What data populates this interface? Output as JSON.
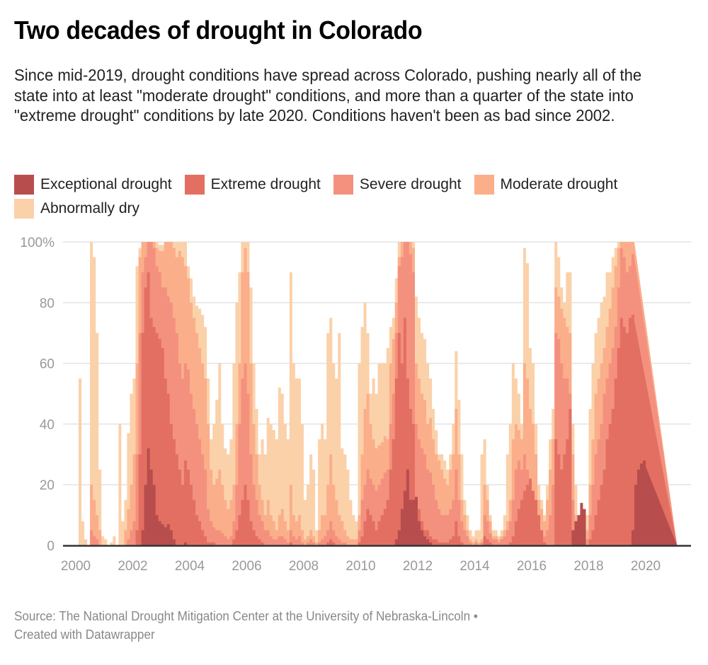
{
  "header": {
    "title": "Two decades of drought in Colorado",
    "subtitle": "Since mid-2019, drought conditions have spread across Colorado, pushing nearly all of the state into at least \"moderate drought\" conditions, and more than a quarter of the state into \"extreme drought\" conditions by late 2020. Conditions haven't been as bad since 2002."
  },
  "legend": [
    {
      "label": "Exceptional drought",
      "color": "#b84d4d"
    },
    {
      "label": "Extreme drought",
      "color": "#e36f62"
    },
    {
      "label": "Severe drought",
      "color": "#f3917e"
    },
    {
      "label": "Moderate drought",
      "color": "#fbae8a"
    },
    {
      "label": "Abnormally dry",
      "color": "#fbd1aa"
    }
  ],
  "footer": {
    "source": "Source: The National Drought Mitigation Center at the University of Nebraska-Lincoln •",
    "credit": "Created with Datawrapper"
  },
  "chart_data": {
    "type": "area",
    "stacking": "cumulative (each layer is the share of the state at that category or worse, drawn overlapping)",
    "title": "Two decades of drought in Colorado",
    "xlabel": "",
    "ylabel": "",
    "xlim": [
      1999.95,
      2021.15
    ],
    "ylim": [
      0,
      100
    ],
    "x_ticks": [
      "2000",
      "2002",
      "2004",
      "2006",
      "2008",
      "2010",
      "2012",
      "2014",
      "2016",
      "2018",
      "2020"
    ],
    "y_ticks": [
      "0",
      "20",
      "40",
      "60",
      "80",
      "100%"
    ],
    "grid": true,
    "legend_position": "top",
    "x": [
      2000.0,
      2000.1,
      2000.2,
      2000.3,
      2000.4,
      2000.5,
      2000.6,
      2000.7,
      2000.8,
      2000.9,
      2001.0,
      2001.1,
      2001.2,
      2001.3,
      2001.4,
      2001.5,
      2001.6,
      2001.7,
      2001.8,
      2001.9,
      2002.0,
      2002.1,
      2002.2,
      2002.3,
      2002.4,
      2002.5,
      2002.6,
      2002.7,
      2002.8,
      2002.9,
      2003.0,
      2003.1,
      2003.2,
      2003.3,
      2003.4,
      2003.5,
      2003.6,
      2003.7,
      2003.8,
      2003.9,
      2004.0,
      2004.1,
      2004.2,
      2004.3,
      2004.4,
      2004.5,
      2004.6,
      2004.7,
      2004.8,
      2004.9,
      2005.0,
      2005.1,
      2005.2,
      2005.3,
      2005.4,
      2005.5,
      2005.6,
      2005.7,
      2005.8,
      2005.9,
      2006.0,
      2006.1,
      2006.2,
      2006.3,
      2006.4,
      2006.5,
      2006.6,
      2006.7,
      2006.8,
      2006.9,
      2007.0,
      2007.1,
      2007.2,
      2007.3,
      2007.4,
      2007.5,
      2007.6,
      2007.7,
      2007.8,
      2007.9,
      2008.0,
      2008.1,
      2008.2,
      2008.3,
      2008.4,
      2008.5,
      2008.6,
      2008.7,
      2008.8,
      2008.9,
      2009.0,
      2009.1,
      2009.2,
      2009.3,
      2009.4,
      2009.5,
      2009.6,
      2009.7,
      2009.8,
      2009.9,
      2010.0,
      2010.1,
      2010.2,
      2010.3,
      2010.4,
      2010.5,
      2010.6,
      2010.7,
      2010.8,
      2010.9,
      2011.0,
      2011.1,
      2011.2,
      2011.3,
      2011.4,
      2011.5,
      2011.6,
      2011.7,
      2011.8,
      2011.9,
      2012.0,
      2012.1,
      2012.2,
      2012.3,
      2012.4,
      2012.5,
      2012.6,
      2012.7,
      2012.8,
      2012.9,
      2013.0,
      2013.1,
      2013.2,
      2013.3,
      2013.4,
      2013.5,
      2013.6,
      2013.7,
      2013.8,
      2013.9,
      2014.0,
      2014.1,
      2014.2,
      2014.3,
      2014.4,
      2014.5,
      2014.6,
      2014.7,
      2014.8,
      2014.9,
      2015.0,
      2015.1,
      2015.2,
      2015.3,
      2015.4,
      2015.5,
      2015.6,
      2015.7,
      2015.8,
      2015.9,
      2016.0,
      2016.1,
      2016.2,
      2016.3,
      2016.4,
      2016.5,
      2016.6,
      2016.7,
      2016.8,
      2016.9,
      2017.0,
      2017.1,
      2017.2,
      2017.3,
      2017.4,
      2017.5,
      2017.6,
      2017.7,
      2017.8,
      2017.9,
      2018.0,
      2018.1,
      2018.2,
      2018.3,
      2018.4,
      2018.5,
      2018.6,
      2018.7,
      2018.8,
      2018.9,
      2019.0,
      2019.1,
      2019.2,
      2019.3,
      2019.4,
      2019.5,
      2019.6,
      2019.7,
      2019.8,
      2019.9,
      2020.0,
      2020.1,
      2020.2,
      2020.3,
      2020.4,
      2020.5,
      2020.6,
      2020.7,
      2020.8,
      2020.9,
      2021.0,
      2021.1
    ],
    "series": [
      {
        "name": "Abnormally dry",
        "values": [
          0,
          55,
          8,
          2,
          0,
          100,
          95,
          70,
          25,
          3,
          2,
          0,
          1,
          3,
          0,
          40,
          8,
          15,
          37,
          50,
          55,
          92,
          98,
          100,
          100,
          100,
          100,
          100,
          100,
          99,
          99,
          100,
          100,
          100,
          100,
          100,
          100,
          100,
          100,
          92,
          88,
          82,
          79,
          78,
          76,
          72,
          55,
          35,
          40,
          48,
          60,
          40,
          32,
          30,
          35,
          60,
          80,
          90,
          100,
          100,
          100,
          85,
          60,
          45,
          30,
          35,
          30,
          42,
          40,
          38,
          35,
          52,
          50,
          40,
          35,
          90,
          60,
          55,
          55,
          40,
          15,
          20,
          30,
          25,
          5,
          35,
          40,
          35,
          70,
          75,
          60,
          55,
          70,
          32,
          30,
          25,
          15,
          10,
          8,
          60,
          72,
          80,
          70,
          50,
          55,
          50,
          60,
          60,
          60,
          65,
          72,
          75,
          88,
          100,
          100,
          100,
          100,
          100,
          100,
          82,
          75,
          70,
          68,
          60,
          55,
          45,
          38,
          30,
          30,
          28,
          25,
          30,
          40,
          64,
          48,
          30,
          15,
          10,
          5,
          3,
          5,
          5,
          30,
          35,
          20,
          10,
          5,
          5,
          3,
          5,
          10,
          30,
          40,
          60,
          55,
          50,
          40,
          98,
          93,
          65,
          60,
          40,
          20,
          15,
          10,
          20,
          35,
          45,
          100,
          95,
          85,
          80,
          90,
          90,
          40,
          20,
          10,
          5,
          0,
          10,
          45,
          60,
          70,
          75,
          80,
          82,
          90,
          90,
          95,
          98,
          100,
          100,
          100,
          100,
          100,
          100,
          100
        ]
      },
      {
        "name": "Moderate drought",
        "values": [
          0,
          0,
          0,
          0,
          0,
          20,
          15,
          10,
          5,
          0,
          0,
          0,
          0,
          0,
          0,
          0,
          0,
          5,
          12,
          20,
          30,
          60,
          95,
          100,
          100,
          100,
          100,
          100,
          98,
          97,
          97,
          100,
          100,
          100,
          98,
          95,
          97,
          95,
          92,
          88,
          80,
          75,
          70,
          65,
          60,
          55,
          40,
          25,
          20,
          22,
          25,
          20,
          15,
          12,
          15,
          20,
          40,
          60,
          90,
          98,
          90,
          60,
          40,
          30,
          20,
          15,
          10,
          15,
          10,
          8,
          5,
          10,
          12,
          8,
          5,
          20,
          10,
          8,
          10,
          5,
          2,
          3,
          5,
          3,
          1,
          5,
          10,
          10,
          20,
          30,
          20,
          15,
          10,
          8,
          5,
          3,
          2,
          2,
          2,
          10,
          30,
          45,
          50,
          40,
          35,
          32,
          33,
          34,
          36,
          35,
          60,
          68,
          80,
          95,
          100,
          100,
          100,
          100,
          98,
          60,
          55,
          50,
          48,
          40,
          42,
          35,
          30,
          28,
          25,
          22,
          20,
          25,
          30,
          45,
          30,
          15,
          10,
          5,
          2,
          1,
          2,
          1,
          2,
          20,
          15,
          8,
          3,
          3,
          2,
          3,
          5,
          8,
          15,
          35,
          40,
          38,
          35,
          60,
          55,
          45,
          40,
          30,
          15,
          12,
          8,
          15,
          25,
          35,
          85,
          82,
          78,
          75,
          72,
          70,
          30,
          10,
          5,
          2,
          0,
          5,
          20,
          35,
          50,
          55,
          60,
          65,
          72,
          78,
          85,
          92,
          98,
          100,
          100,
          100,
          100,
          100,
          100
        ]
      },
      {
        "name": "Severe drought",
        "values": [
          0,
          0,
          0,
          0,
          0,
          5,
          3,
          2,
          0,
          0,
          0,
          0,
          0,
          0,
          0,
          0,
          0,
          0,
          2,
          5,
          8,
          30,
          70,
          90,
          95,
          100,
          100,
          98,
          92,
          90,
          85,
          85,
          82,
          80,
          75,
          70,
          60,
          55,
          60,
          58,
          50,
          45,
          40,
          35,
          30,
          25,
          12,
          8,
          6,
          5,
          5,
          4,
          3,
          2,
          3,
          8,
          20,
          40,
          55,
          60,
          50,
          30,
          20,
          15,
          10,
          8,
          5,
          5,
          3,
          2,
          2,
          3,
          3,
          2,
          1,
          5,
          3,
          2,
          3,
          1,
          0,
          1,
          2,
          1,
          0,
          1,
          2,
          3,
          5,
          8,
          5,
          3,
          2,
          1,
          1,
          0,
          0,
          0,
          0,
          5,
          15,
          20,
          25,
          22,
          20,
          18,
          20,
          22,
          24,
          25,
          40,
          50,
          70,
          92,
          95,
          100,
          100,
          96,
          90,
          40,
          35,
          32,
          30,
          25,
          24,
          20,
          15,
          12,
          10,
          10,
          10,
          12,
          15,
          25,
          15,
          8,
          5,
          3,
          1,
          0,
          1,
          0,
          1,
          10,
          8,
          4,
          2,
          2,
          1,
          2,
          3,
          5,
          8,
          15,
          25,
          28,
          25,
          30,
          25,
          20,
          15,
          10,
          5,
          5,
          3,
          5,
          10,
          20,
          70,
          68,
          60,
          55,
          55,
          50,
          15,
          5,
          2,
          0,
          0,
          2,
          10,
          20,
          30,
          35,
          40,
          50,
          55,
          60,
          65,
          72,
          85,
          98,
          95,
          90,
          92,
          96,
          95
        ]
      },
      {
        "name": "Extreme drought",
        "values": [
          0,
          0,
          0,
          0,
          0,
          0,
          0,
          0,
          0,
          0,
          0,
          0,
          0,
          0,
          0,
          0,
          0,
          0,
          0,
          0,
          0,
          5,
          30,
          70,
          85,
          90,
          75,
          72,
          70,
          68,
          65,
          55,
          50,
          40,
          35,
          30,
          25,
          20,
          28,
          25,
          20,
          15,
          10,
          8,
          5,
          3,
          1,
          1,
          1,
          0,
          0,
          0,
          0,
          0,
          0,
          2,
          5,
          10,
          15,
          20,
          15,
          8,
          5,
          3,
          2,
          1,
          0,
          0,
          0,
          0,
          0,
          0,
          0,
          0,
          0,
          1,
          0,
          0,
          0,
          0,
          0,
          0,
          0,
          0,
          0,
          0,
          0,
          0,
          1,
          2,
          1,
          0,
          0,
          0,
          0,
          0,
          0,
          0,
          0,
          1,
          3,
          8,
          12,
          10,
          8,
          5,
          8,
          10,
          12,
          15,
          25,
          35,
          55,
          70,
          60,
          75,
          55,
          45,
          40,
          15,
          12,
          8,
          5,
          5,
          3,
          2,
          2,
          1,
          1,
          1,
          1,
          2,
          3,
          8,
          3,
          1,
          0,
          0,
          0,
          0,
          0,
          0,
          0,
          3,
          2,
          1,
          0,
          0,
          0,
          0,
          0,
          0,
          1,
          3,
          8,
          12,
          15,
          18,
          20,
          22,
          18,
          15,
          10,
          5,
          1,
          0,
          0,
          0,
          35,
          30,
          25,
          30,
          35,
          45,
          5,
          0,
          0,
          0,
          0,
          0,
          2,
          5,
          10,
          15,
          20,
          25,
          35,
          40,
          45,
          55,
          65,
          75,
          72,
          70,
          75,
          76,
          74
        ]
      },
      {
        "name": "Exceptional drought",
        "values": [
          0,
          0,
          0,
          0,
          0,
          0,
          0,
          0,
          0,
          0,
          0,
          0,
          0,
          0,
          0,
          0,
          0,
          0,
          0,
          0,
          0,
          0,
          0,
          5,
          20,
          32,
          25,
          20,
          10,
          8,
          7,
          6,
          7,
          5,
          2,
          0,
          0,
          0,
          1,
          0,
          0,
          0,
          0,
          0,
          0,
          0,
          0,
          0,
          0,
          0,
          0,
          0,
          0,
          0,
          0,
          0,
          0,
          0,
          0,
          0,
          0,
          0,
          0,
          0,
          0,
          0,
          0,
          0,
          0,
          0,
          0,
          0,
          0,
          0,
          0,
          0,
          0,
          0,
          0,
          0,
          0,
          0,
          0,
          0,
          0,
          0,
          0,
          0,
          0,
          0,
          0,
          0,
          0,
          0,
          0,
          0,
          0,
          0,
          0,
          0,
          0,
          0,
          0,
          0,
          0,
          0,
          0,
          0,
          0,
          0,
          0,
          0,
          2,
          5,
          12,
          18,
          25,
          15,
          15,
          16,
          8,
          5,
          3,
          2,
          1,
          0,
          0,
          0,
          0,
          0,
          0,
          0,
          0,
          0,
          0,
          0,
          0,
          0,
          0,
          0,
          0,
          0,
          0,
          0,
          0,
          0,
          0,
          0,
          0,
          0,
          0,
          0,
          0,
          0,
          0,
          0,
          0,
          0,
          0,
          0,
          0,
          0,
          0,
          0,
          0,
          0,
          0,
          0,
          0,
          0,
          0,
          0,
          0,
          0,
          5,
          8,
          10,
          14,
          12,
          0,
          0,
          0,
          0,
          0,
          0,
          0,
          0,
          0,
          0,
          0,
          0,
          0,
          0,
          0,
          0,
          5,
          20,
          25,
          27,
          28,
          26
        ]
      }
    ]
  }
}
